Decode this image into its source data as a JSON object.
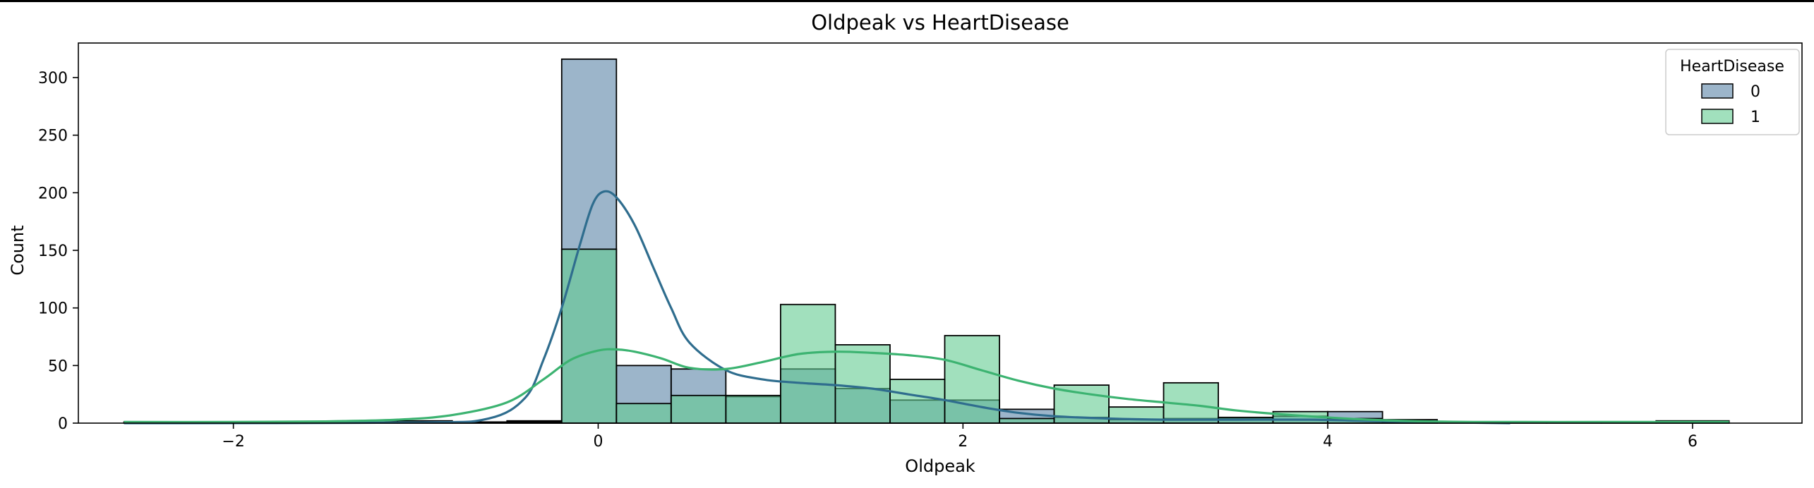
{
  "chart_data": {
    "type": "histogram",
    "title": "Oldpeak vs HeartDisease",
    "xlabel": "Oldpeak",
    "ylabel": "Count",
    "xlim": [
      -2.85,
      6.6
    ],
    "ylim": [
      0,
      330
    ],
    "xticks": [
      -2,
      0,
      2,
      4,
      6
    ],
    "xtick_labels": [
      "−2",
      "0",
      "2",
      "4",
      "6"
    ],
    "yticks": [
      0,
      50,
      100,
      150,
      200,
      250,
      300
    ],
    "bin_edges": [
      -2.6,
      -2.3,
      -2.0,
      -1.7,
      -1.4,
      -1.1,
      -0.8,
      -0.5,
      -0.2,
      0.1,
      0.4,
      0.7,
      1.0,
      1.3,
      1.6,
      1.9,
      2.2,
      2.5,
      2.8,
      3.1,
      3.4,
      3.7,
      4.0,
      4.3,
      4.6,
      4.9,
      5.2,
      5.5,
      5.8,
      6.2
    ],
    "legend": {
      "title": "HeartDisease",
      "position": "upper right"
    },
    "grid": false,
    "series": [
      {
        "name": "0",
        "color": "#5a84a6",
        "kde_color": "#2f6d8e",
        "counts": [
          0,
          0,
          0,
          0,
          0,
          0,
          0,
          2,
          316,
          50,
          47,
          23,
          47,
          30,
          20,
          20,
          12,
          5,
          3,
          4,
          4,
          6,
          10,
          3,
          0,
          0,
          0,
          0,
          0
        ],
        "kde": [
          [
            -2.6,
            0
          ],
          [
            -1.0,
            0.5
          ],
          [
            -0.6,
            4
          ],
          [
            -0.4,
            22
          ],
          [
            -0.3,
            55
          ],
          [
            -0.2,
            100
          ],
          [
            -0.1,
            155
          ],
          [
            -0.03,
            190
          ],
          [
            0.03,
            201
          ],
          [
            0.1,
            196
          ],
          [
            0.2,
            172
          ],
          [
            0.3,
            136
          ],
          [
            0.4,
            100
          ],
          [
            0.5,
            70
          ],
          [
            0.7,
            46
          ],
          [
            0.9,
            38
          ],
          [
            1.1,
            35
          ],
          [
            1.3,
            33
          ],
          [
            1.5,
            30
          ],
          [
            1.7,
            25
          ],
          [
            1.9,
            20
          ],
          [
            2.1,
            14
          ],
          [
            2.3,
            9
          ],
          [
            2.5,
            6
          ],
          [
            2.8,
            4
          ],
          [
            3.1,
            3
          ],
          [
            3.5,
            3
          ],
          [
            3.9,
            3
          ],
          [
            4.2,
            2
          ],
          [
            4.5,
            1
          ],
          [
            5.0,
            0
          ]
        ]
      },
      {
        "name": "1",
        "color": "#62cb91",
        "kde_color": "#3cb371",
        "counts": [
          1,
          1,
          1,
          1,
          2,
          2,
          1,
          1,
          151,
          17,
          24,
          24,
          103,
          68,
          38,
          76,
          4,
          33,
          14,
          35,
          5,
          10,
          4,
          1,
          1,
          1,
          1,
          1,
          2
        ],
        "kde": [
          [
            -2.6,
            1
          ],
          [
            -2.0,
            1
          ],
          [
            -1.5,
            1.5
          ],
          [
            -1.1,
            3
          ],
          [
            -0.8,
            7
          ],
          [
            -0.5,
            18
          ],
          [
            -0.3,
            38
          ],
          [
            -0.15,
            55
          ],
          [
            0.0,
            63
          ],
          [
            0.1,
            64
          ],
          [
            0.2,
            62
          ],
          [
            0.35,
            56
          ],
          [
            0.5,
            48
          ],
          [
            0.7,
            47
          ],
          [
            0.9,
            53
          ],
          [
            1.1,
            60
          ],
          [
            1.3,
            62
          ],
          [
            1.5,
            61
          ],
          [
            1.7,
            59
          ],
          [
            1.9,
            55
          ],
          [
            2.1,
            46
          ],
          [
            2.3,
            37
          ],
          [
            2.5,
            30
          ],
          [
            2.7,
            25
          ],
          [
            2.9,
            21
          ],
          [
            3.1,
            18
          ],
          [
            3.3,
            15
          ],
          [
            3.5,
            11
          ],
          [
            3.8,
            7
          ],
          [
            4.1,
            4
          ],
          [
            4.4,
            2
          ],
          [
            4.8,
            1
          ],
          [
            5.5,
            1
          ],
          [
            6.2,
            1
          ]
        ]
      }
    ]
  }
}
